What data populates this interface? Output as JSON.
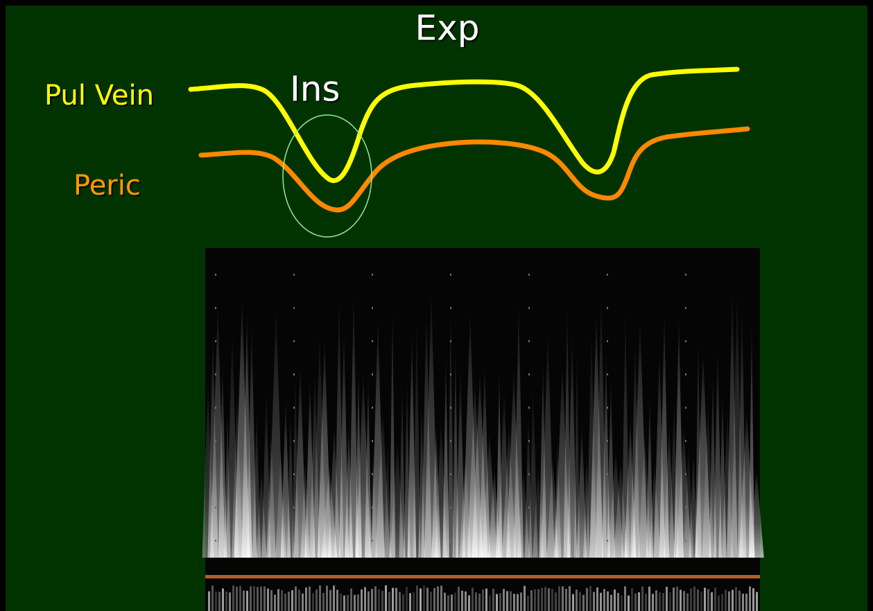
{
  "labels": {
    "top": "Exp",
    "circle": "Ins",
    "pul_vein": "Pul Vein",
    "peric": "Peric"
  }
}
